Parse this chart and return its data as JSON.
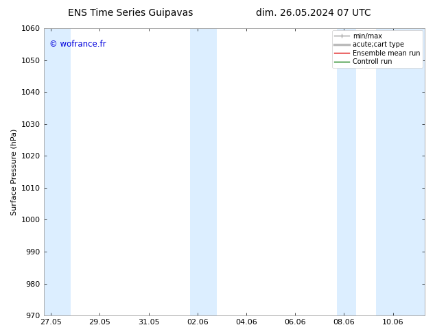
{
  "title_left": "ENS Time Series Guipavas",
  "title_right": "dim. 26.05.2024 07 UTC",
  "ylabel": "Surface Pressure (hPa)",
  "ylim": [
    970,
    1060
  ],
  "yticks": [
    970,
    980,
    990,
    1000,
    1010,
    1020,
    1030,
    1040,
    1050,
    1060
  ],
  "xtick_labels": [
    "27.05",
    "29.05",
    "31.05",
    "02.06",
    "04.06",
    "06.06",
    "08.06",
    "10.06"
  ],
  "xtick_positions": [
    0,
    2,
    4,
    6,
    8,
    10,
    12,
    14
  ],
  "xlim": [
    -0.3,
    15.3
  ],
  "watermark": "© wofrance.fr",
  "watermark_color": "#0000dd",
  "bg_color": "#ffffff",
  "shaded_bands": [
    {
      "start": -0.3,
      "end": 0.8
    },
    {
      "start": 5.7,
      "end": 6.8
    },
    {
      "start": 11.7,
      "end": 12.5
    },
    {
      "start": 13.3,
      "end": 15.3
    }
  ],
  "shade_color": "#dceeff",
  "legend_items": [
    {
      "label": "min/max",
      "color": "#999999",
      "lw": 1.0
    },
    {
      "label": "acute;cart type",
      "color": "#bbbbbb",
      "lw": 2.5
    },
    {
      "label": "Ensemble mean run",
      "color": "#dd0000",
      "lw": 1.0
    },
    {
      "label": "Controll run",
      "color": "#007700",
      "lw": 1.0
    }
  ],
  "title_fontsize": 10,
  "tick_fontsize": 8,
  "ylabel_fontsize": 8,
  "legend_fontsize": 7
}
